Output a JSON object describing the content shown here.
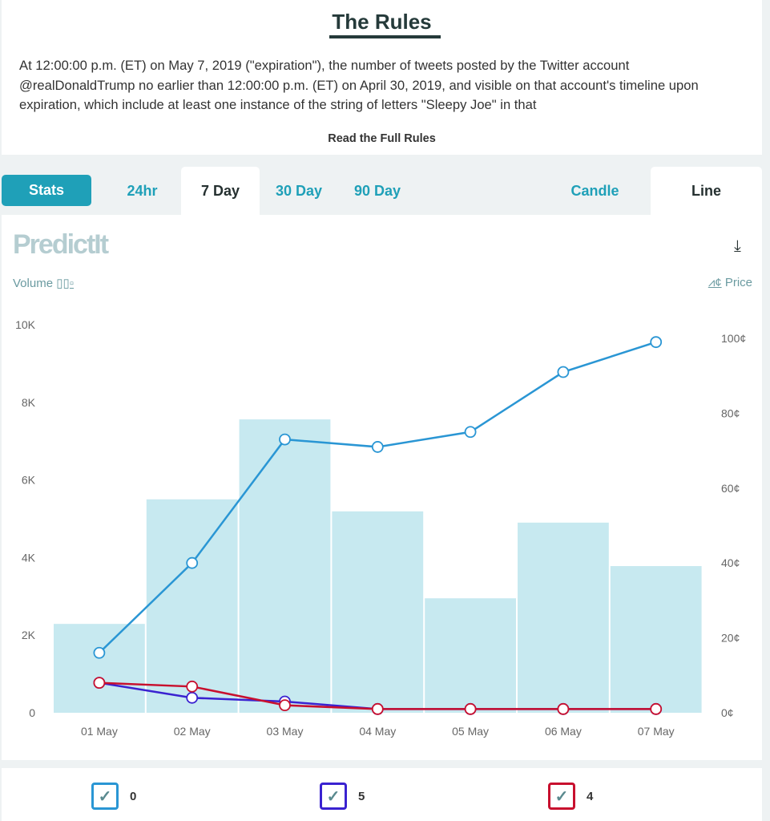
{
  "rules": {
    "title": "The Rules",
    "text": "At 12:00:00 p.m. (ET) on May 7, 2019 (\"expiration\"), the number of tweets posted by the Twitter account @realDonaldTrump no earlier than 12:00:00 p.m. (ET) on April 30, 2019, and visible on that account's timeline upon expiration, which include at least one instance of the string of letters \"Sleepy Joe\" in that",
    "read_full": "Read the Full Rules"
  },
  "tabs": {
    "stats": "Stats",
    "h24": "24hr",
    "d7": "7 Day",
    "d30": "30 Day",
    "d90": "90 Day",
    "candle": "Candle",
    "line": "Line"
  },
  "chart_header": {
    "logo": "PredictIt",
    "volume": "Volume",
    "price": "Price",
    "download_icon": "download-icon"
  },
  "chart_data": {
    "type": "bar+line",
    "categories": [
      "01 May",
      "02 May",
      "03 May",
      "04 May",
      "05 May",
      "06 May",
      "07 May"
    ],
    "volume": [
      2290,
      5500,
      7560,
      5190,
      2950,
      4900,
      3780
    ],
    "y_left": {
      "label": "Volume",
      "ylim": [
        0,
        10000
      ],
      "ticks": [
        "0",
        "2K",
        "4K",
        "6K",
        "8K",
        "10K"
      ]
    },
    "y_right": {
      "label": "Price",
      "ylim": [
        0,
        100
      ],
      "ticks": [
        "0¢",
        "20¢",
        "40¢",
        "60¢",
        "80¢",
        "100¢"
      ]
    },
    "series": [
      {
        "name": "0",
        "color": "#2a96d4",
        "values": [
          16,
          40,
          73,
          71,
          75,
          91,
          99
        ]
      },
      {
        "name": "5",
        "color": "#3a22d0",
        "values": [
          8,
          4,
          3,
          1,
          1,
          1,
          1
        ]
      },
      {
        "name": "4",
        "color": "#c8102e",
        "values": [
          8,
          7,
          2,
          1,
          1,
          1,
          1
        ]
      }
    ],
    "bar_color": "#c7e9f0",
    "grid": false
  }
}
